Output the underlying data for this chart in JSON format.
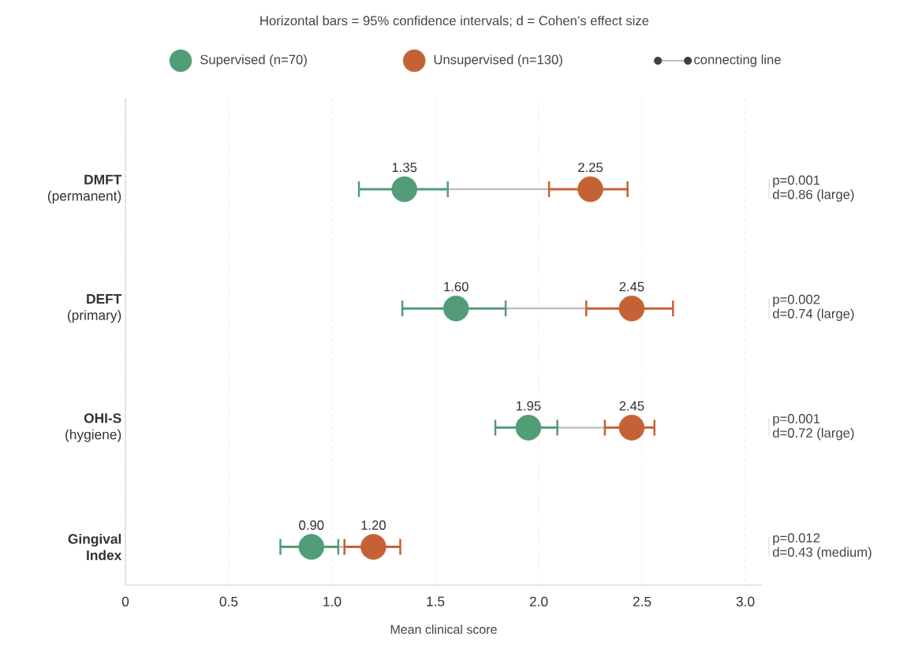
{
  "chart_data": {
    "type": "scatter",
    "orientation": "horizontal",
    "title": "Horizontal bars = 95% confidence intervals; d = Cohen’s effect size",
    "xlabel": "Mean clinical score",
    "categories": [
      "**DMFT** (permanent)",
      "**DEFT** (primary)",
      "**OHI-S** (hygiene)",
      "**Gingival Index**"
    ],
    "series": [
      {
        "name": "Supervised (n=70)",
        "color": "#529c77",
        "values": [
          1.35,
          1.6,
          1.95,
          0.9
        ],
        "errors": [
          [
            1.13,
            1.56
          ],
          [
            1.34,
            1.84
          ],
          [
            1.79,
            2.09
          ],
          [
            0.75,
            1.03
          ]
        ],
        "value_labels": [
          "1.35",
          "1.60",
          "1.95",
          "0.90"
        ]
      },
      {
        "name": "Unsupervised (n=130)",
        "color": "#c46236",
        "values": [
          2.25,
          2.45,
          2.45,
          1.2
        ],
        "errors": [
          [
            2.05,
            2.43
          ],
          [
            2.23,
            2.65
          ],
          [
            2.32,
            2.56
          ],
          [
            1.06,
            1.33
          ]
        ],
        "value_labels": [
          "2.25",
          "2.45",
          "2.45",
          "1.20"
        ]
      },
      {
        "name": "connecting line",
        "type": "bar",
        "color": "#bbbbbb",
        "base": [
          1.56,
          1.84,
          2.09,
          1.03
        ],
        "values": [
          0.49,
          0.39,
          0.23,
          0.03
        ]
      }
    ],
    "xlim": [
      0,
      3.08
    ],
    "xticks": [
      0,
      0.5,
      {
        "value": 1,
        "label": "1.0"
      },
      1.5,
      {
        "value": 2,
        "label": "2.0"
      },
      2.5,
      {
        "value": 3,
        "label": "3.0"
      }
    ],
    "grid": "x",
    "legend": "top",
    "marker": "circle",
    "annotations": [
      "p=0.001",
      "d=0.86 (large)",
      "p=0.002",
      "d=0.74 (large)",
      "p=0.001",
      "d=0.72 (large)",
      "p=0.012",
      "d=0.43 (medium)"
    ]
  }
}
